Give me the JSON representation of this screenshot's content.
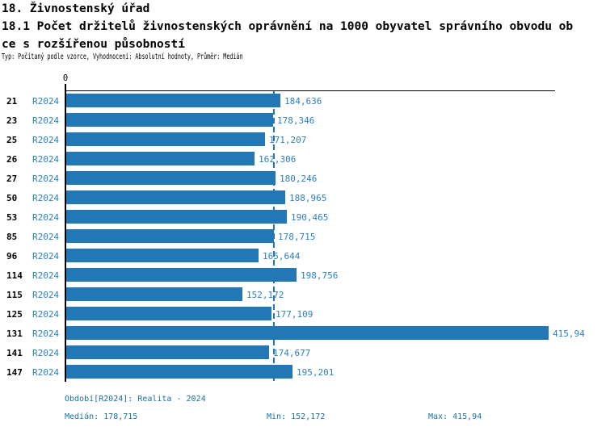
{
  "header": {
    "title": "18. Živnostenský úřad",
    "subtitle_line1": "18.1 Počet držitelů živnostenských oprávnění na 1000 obyvatel správního obvodu ob",
    "subtitle_line2": "ce s rozšířenou působností",
    "meta": "Typ: Počítaný podle vzorce, Vyhodnocení: Absolutní hodnoty, Průměr: Medián"
  },
  "chart_data": {
    "type": "bar",
    "orientation": "horizontal",
    "title": "",
    "xlabel": "",
    "ylabel": "",
    "grid": false,
    "legend_position": "none",
    "axis": {
      "zero_label": "0",
      "min": 0,
      "max_value": 415.94
    },
    "categories": [
      "21",
      "23",
      "25",
      "26",
      "27",
      "50",
      "53",
      "85",
      "96",
      "114",
      "115",
      "125",
      "131",
      "141",
      "147"
    ],
    "series": [
      {
        "name": "R2024",
        "values": [
          184.636,
          178.346,
          171.207,
          162.306,
          180.246,
          188.965,
          190.465,
          178.715,
          165.644,
          198.756,
          152.172,
          177.109,
          415.94,
          174.677,
          195.201
        ]
      }
    ],
    "value_labels": [
      "184,636",
      "178,346",
      "171,207",
      "162,306",
      "180,246",
      "188,965",
      "190,465",
      "178,715",
      "165,644",
      "198,756",
      "152,172",
      "177,109",
      "415,94",
      "174,677",
      "195,201"
    ],
    "median": 178.715,
    "min": 152.172,
    "max": 415.94,
    "colors": {
      "bar": "#2377b4",
      "label_text": "#2e7fc0",
      "median_line": "#2377b4",
      "footer_text": "#1a6f9c",
      "axis": "#000000"
    }
  },
  "footer": {
    "period_line": "Období[R2024]: Realita - 2024",
    "median_label": "Medián: 178,715",
    "min_label": "Min: 152,172",
    "max_label": "Max: 415,94"
  }
}
